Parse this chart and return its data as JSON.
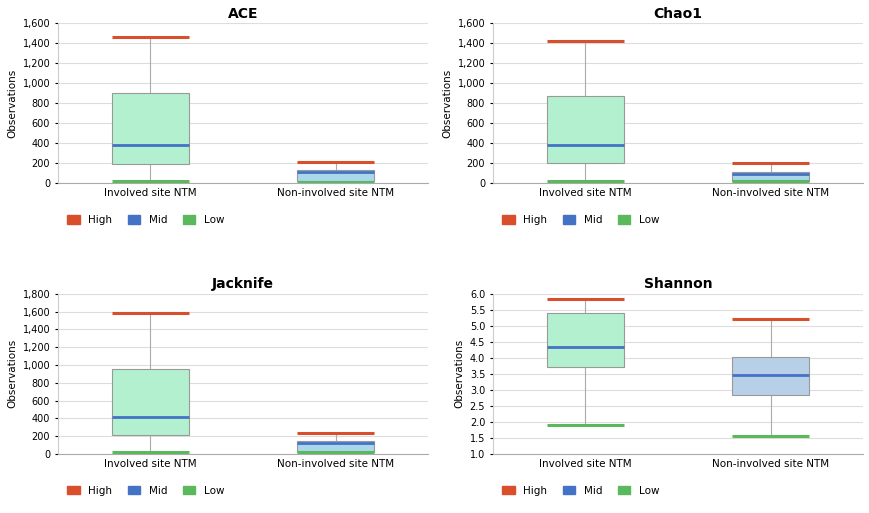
{
  "subplots": [
    {
      "title": "ACE",
      "ylabel": "Observations",
      "ylim": [
        0,
        1600
      ],
      "yticks": [
        0,
        200,
        400,
        600,
        800,
        1000,
        1200,
        1400,
        1600
      ],
      "groups": [
        {
          "label": "Involved site NTM",
          "whisker_high": 1460,
          "q3": 900,
          "median": 380,
          "q1": 190,
          "whisker_low": 20,
          "box_color": "#b2f0d0",
          "median_color": "#4472c4",
          "whisker_high_color": "#d94f2b",
          "whisker_low_color": "#5cb85c"
        },
        {
          "label": "Non-involved site NTM",
          "whisker_high": 215,
          "q3": 130,
          "median": 110,
          "q1": 25,
          "whisker_low": 15,
          "box_color": "#a8d8ea",
          "median_color": "#4472c4",
          "whisker_high_color": "#d94f2b",
          "whisker_low_color": "#5cb85c"
        }
      ]
    },
    {
      "title": "Chao1",
      "ylabel": "Observations",
      "ylim": [
        0,
        1600
      ],
      "yticks": [
        0,
        200,
        400,
        600,
        800,
        1000,
        1200,
        1400,
        1600
      ],
      "groups": [
        {
          "label": "Involved site NTM",
          "whisker_high": 1420,
          "q3": 870,
          "median": 380,
          "q1": 200,
          "whisker_low": 20,
          "box_color": "#b2f0d0",
          "median_color": "#4472c4",
          "whisker_high_color": "#d94f2b",
          "whisker_low_color": "#5cb85c"
        },
        {
          "label": "Non-involved site NTM",
          "whisker_high": 200,
          "q3": 115,
          "median": 95,
          "q1": 25,
          "whisker_low": 20,
          "box_color": "#a8d8ea",
          "median_color": "#4472c4",
          "whisker_high_color": "#d94f2b",
          "whisker_low_color": "#5cb85c"
        }
      ]
    },
    {
      "title": "Jacknife",
      "ylabel": "Observations",
      "ylim": [
        0,
        1800
      ],
      "yticks": [
        0,
        200,
        400,
        600,
        800,
        1000,
        1200,
        1400,
        1600,
        1800
      ],
      "groups": [
        {
          "label": "Involved site NTM",
          "whisker_high": 1590,
          "q3": 960,
          "median": 415,
          "q1": 210,
          "whisker_low": 20,
          "box_color": "#b2f0d0",
          "median_color": "#4472c4",
          "whisker_high_color": "#d94f2b",
          "whisker_low_color": "#5cb85c"
        },
        {
          "label": "Non-involved site NTM",
          "whisker_high": 230,
          "q3": 145,
          "median": 120,
          "q1": 20,
          "whisker_low": 15,
          "box_color": "#a8d8ea",
          "median_color": "#4472c4",
          "whisker_high_color": "#d94f2b",
          "whisker_low_color": "#5cb85c"
        }
      ]
    },
    {
      "title": "Shannon",
      "ylabel": "Observations",
      "ylim": [
        1.0,
        6.0
      ],
      "yticks": [
        1.0,
        1.5,
        2.0,
        2.5,
        3.0,
        3.5,
        4.0,
        4.5,
        5.0,
        5.5,
        6.0
      ],
      "groups": [
        {
          "label": "Involved site NTM",
          "whisker_high": 5.85,
          "q3": 5.4,
          "median": 4.35,
          "q1": 3.72,
          "whisker_low": 1.9,
          "box_color": "#b2f0d0",
          "median_color": "#4472c4",
          "whisker_high_color": "#d94f2b",
          "whisker_low_color": "#5cb85c"
        },
        {
          "label": "Non-involved site NTM",
          "whisker_high": 5.2,
          "q3": 4.02,
          "median": 3.45,
          "q1": 2.85,
          "whisker_low": 1.55,
          "box_color": "#b8cfe8",
          "median_color": "#4472c4",
          "whisker_high_color": "#d94f2b",
          "whisker_low_color": "#5cb85c"
        }
      ]
    }
  ],
  "legend_items": [
    {
      "label": "High",
      "color": "#d94f2b"
    },
    {
      "label": "Mid",
      "color": "#4472c4"
    },
    {
      "label": "Low",
      "color": "#5cb85c"
    }
  ],
  "background_color": "#ffffff",
  "box_width": 0.42,
  "positions": [
    1,
    2
  ]
}
